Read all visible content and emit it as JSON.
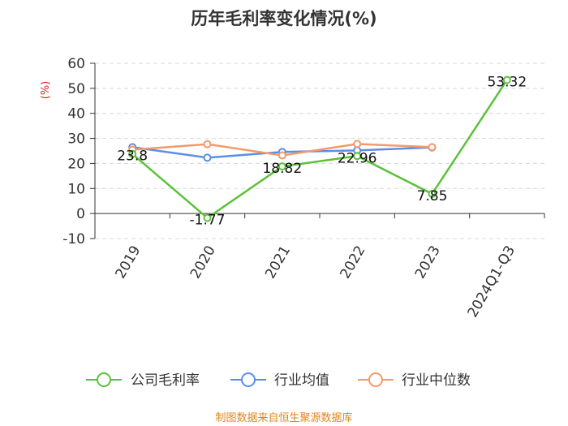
{
  "chart_data": {
    "type": "line",
    "title": "历年毛利率变化情况(%)",
    "ylabel": "(%)",
    "categories": [
      "2019",
      "2020",
      "2021",
      "2022",
      "2023",
      "2024Q1-Q3"
    ],
    "ylim": [
      -10,
      60
    ],
    "yticks": [
      "60",
      "50",
      "40",
      "30",
      "20",
      "10",
      "0",
      "-10"
    ],
    "grid": true,
    "legend_position": "bottom",
    "series": [
      {
        "name": "公司毛利率",
        "color": "#5cc13b",
        "values": [
          23.8,
          -1.77,
          18.82,
          22.96,
          7.85,
          53.32
        ],
        "labels": [
          "23.8",
          "-1.77",
          "18.82",
          "22.96",
          "7.85",
          "53.32"
        ]
      },
      {
        "name": "行业均值",
        "color": "#5b8ee6",
        "values": [
          26.5,
          22.3,
          24.6,
          25.2,
          26.4,
          null
        ]
      },
      {
        "name": "行业中位数",
        "color": "#f29a6b",
        "values": [
          25.5,
          27.7,
          23.2,
          27.8,
          26.5,
          null
        ]
      }
    ]
  },
  "source": "制图数据来自恒生聚源数据库"
}
